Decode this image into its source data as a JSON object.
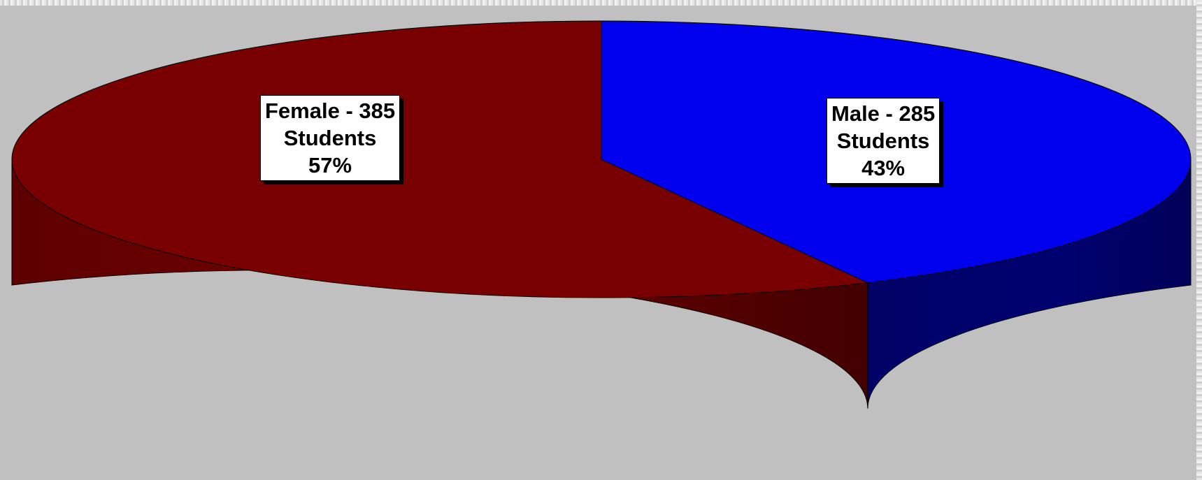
{
  "chart_data": {
    "type": "pie",
    "style": "3d",
    "title": "",
    "start_angle_deg": 90,
    "slices": [
      {
        "label": "Female",
        "value": 385,
        "percent": 57,
        "color": "#780000",
        "side_color": "#6a0000",
        "data_label": {
          "line1": "Female - 385",
          "line2": "Students",
          "line3": "57%"
        }
      },
      {
        "label": "Male",
        "value": 285,
        "percent": 43,
        "color": "#0000ee",
        "side_color": "#000070",
        "data_label": {
          "line1": "Male - 285",
          "line2": "Students",
          "line3": "43%"
        }
      }
    ],
    "background_color": "#c0c0c0",
    "legend": "none"
  }
}
